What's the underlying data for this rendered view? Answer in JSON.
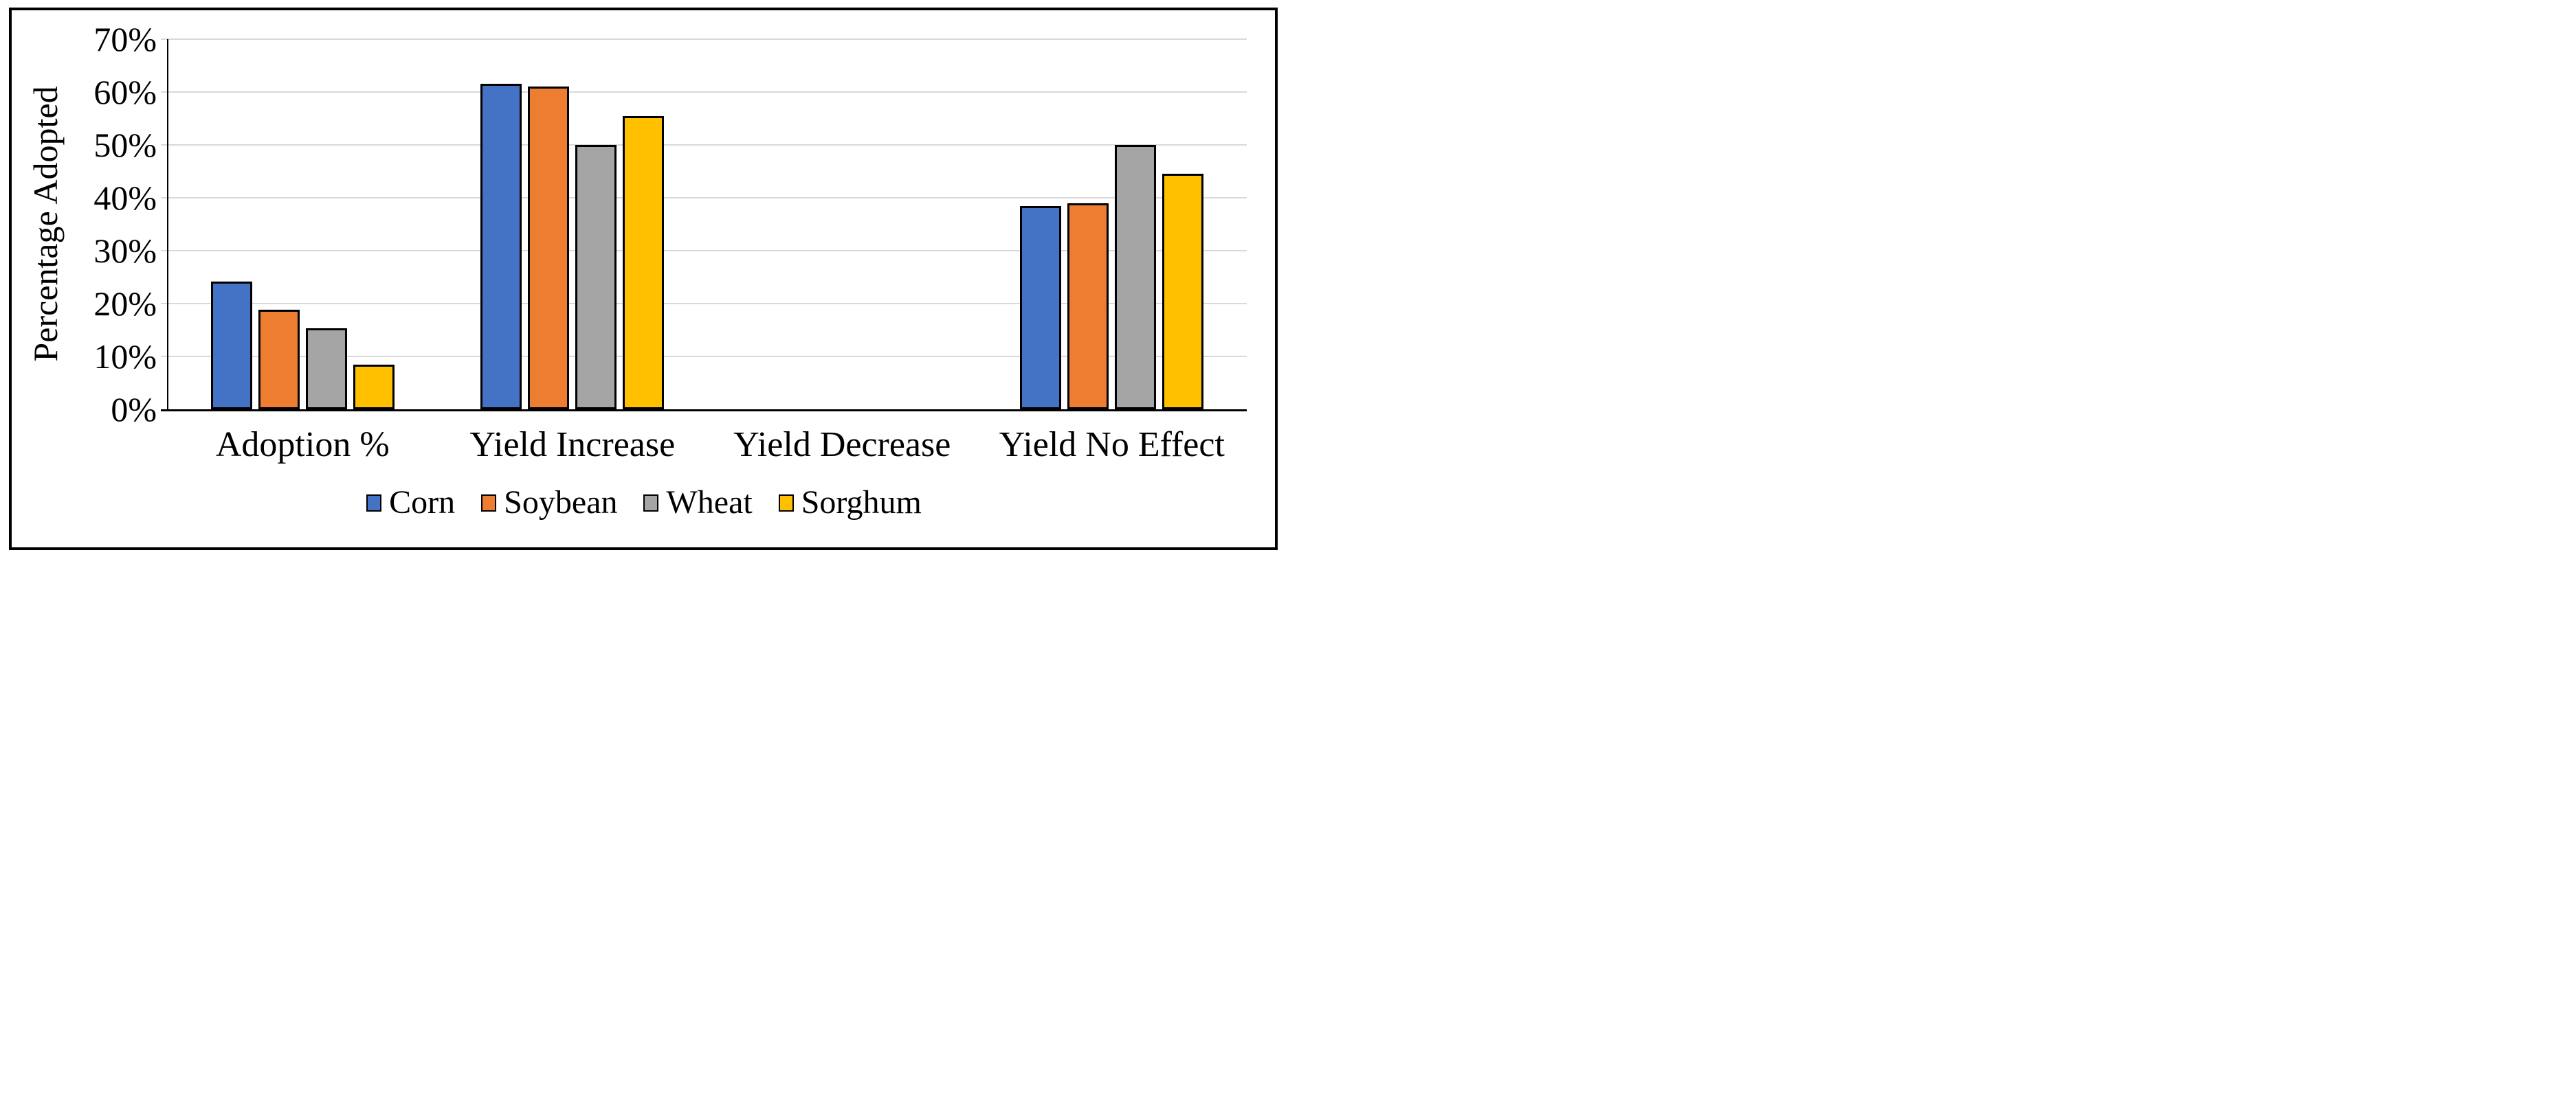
{
  "chart_data": {
    "type": "bar",
    "title": "",
    "ylabel": "Percentage Adopted",
    "xlabel": "",
    "categories": [
      "Adoption %",
      "Yield Increase",
      "Yield Decrease",
      "Yield No Effect"
    ],
    "series": [
      {
        "name": "Corn",
        "color": "#4472C4",
        "values": [
          24.2,
          61.5,
          0,
          38.5
        ]
      },
      {
        "name": "Soybean",
        "color": "#ED7D31",
        "values": [
          18.8,
          61.0,
          0,
          39.0
        ]
      },
      {
        "name": "Wheat",
        "color": "#A5A5A5",
        "values": [
          15.3,
          50.0,
          0,
          50.0
        ]
      },
      {
        "name": "Sorghum",
        "color": "#FFC000",
        "values": [
          8.5,
          55.5,
          0,
          44.5
        ]
      }
    ],
    "ylim": [
      0,
      70
    ],
    "ytick_step": 10,
    "ytick_labels": [
      "0%",
      "10%",
      "20%",
      "30%",
      "40%",
      "50%",
      "60%",
      "70%"
    ],
    "grid": true,
    "legend_position": "bottom",
    "colors": {
      "gridline": "#D9D9D9",
      "axis": "#000000",
      "bar_border": "#000000",
      "frame_border": "#000000",
      "background": "#FFFFFF",
      "text": "#000000"
    }
  }
}
